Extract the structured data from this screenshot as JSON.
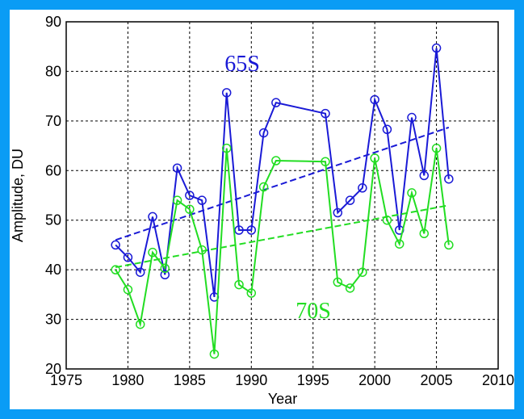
{
  "chart_data": {
    "type": "line",
    "xlabel": "Year",
    "ylabel": "Amplitude, DU",
    "xlim": [
      1975,
      2010
    ],
    "xticks": [
      1975,
      1980,
      1985,
      1990,
      1995,
      2000,
      2005,
      2010
    ],
    "ylim": [
      20,
      90
    ],
    "yticks": [
      20,
      30,
      40,
      50,
      60,
      70,
      80,
      90
    ],
    "grid": true,
    "series": [
      {
        "name": "65S",
        "color": "#1a1ad6",
        "x": [
          1979,
          1980,
          1981,
          1982,
          1983,
          1984,
          1985,
          1986,
          1987,
          1988,
          1989,
          1990,
          1991,
          1992,
          1996,
          1997,
          1998,
          1999,
          2000,
          2001,
          2002,
          2003,
          2004,
          2005,
          2006
        ],
        "values": [
          45,
          42.5,
          39.5,
          50.7,
          39,
          60.5,
          55,
          54,
          34.5,
          75.7,
          48,
          48,
          67.6,
          73.7,
          71.5,
          51.5,
          54,
          56.5,
          74.3,
          68.3,
          48,
          70.7,
          59,
          84.7,
          58.3
        ],
        "trend": {
          "x": [
            1979,
            2006
          ],
          "values": [
            46,
            68.7
          ]
        }
      },
      {
        "name": "70S",
        "color": "#22dd22",
        "x": [
          1979,
          1980,
          1981,
          1982,
          1983,
          1984,
          1985,
          1986,
          1987,
          1988,
          1989,
          1990,
          1991,
          1992,
          1996,
          1997,
          1998,
          1999,
          2000,
          2001,
          2002,
          2003,
          2004,
          2005,
          2006
        ],
        "values": [
          40,
          36,
          29,
          43.5,
          40.3,
          54,
          52.2,
          44,
          23,
          64.5,
          37,
          35.3,
          56.7,
          62,
          61.8,
          37.5,
          36.3,
          39.5,
          62.5,
          50,
          45.2,
          55.5,
          47.3,
          64.5,
          45
        ],
        "trend": {
          "x": [
            1979,
            2006
          ],
          "values": [
            40.5,
            53
          ]
        }
      }
    ]
  }
}
